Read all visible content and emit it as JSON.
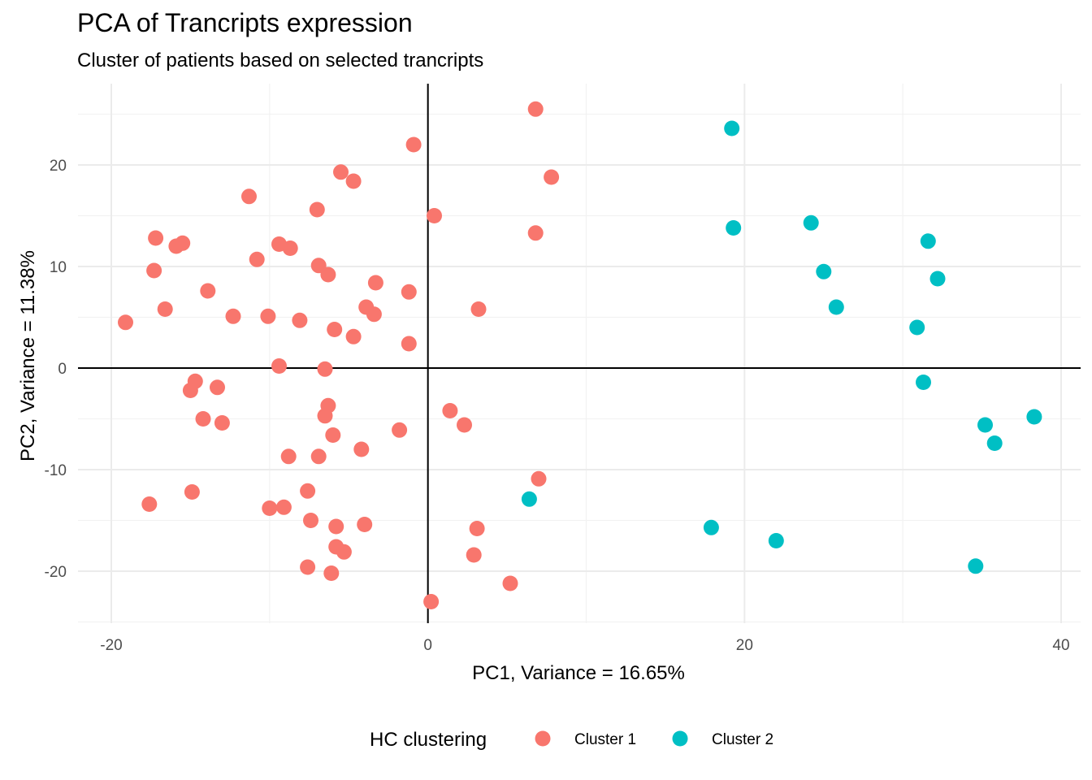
{
  "chart_data": {
    "type": "scatter",
    "title": "PCA of Trancripts expression",
    "subtitle": "Cluster of patients based on selected trancripts",
    "xlabel": "PC1, Variance = 16.65%",
    "ylabel": "PC2, Variance = 11.38%",
    "xlim": [
      -22,
      41
    ],
    "ylim": [
      -25,
      27
    ],
    "x_ticks": [
      -20,
      0,
      20,
      40
    ],
    "y_ticks": [
      -20,
      -10,
      0,
      10,
      20
    ],
    "x_tick_labels": [
      "-20",
      "0",
      "20",
      "40"
    ],
    "y_tick_labels": [
      "-20",
      "-10",
      "0",
      "10",
      "20"
    ],
    "grid": true,
    "zero_lines": true,
    "legend": {
      "title": "HC clustering",
      "position": "bottom"
    },
    "series": [
      {
        "name": "Cluster 1",
        "color": "#F8766D",
        "points": [
          [
            6.8,
            25.5
          ],
          [
            -0.9,
            22.0
          ],
          [
            7.8,
            18.8
          ],
          [
            -5.5,
            19.3
          ],
          [
            -4.7,
            18.4
          ],
          [
            -11.3,
            16.9
          ],
          [
            -7.0,
            15.6
          ],
          [
            0.4,
            15.0
          ],
          [
            6.8,
            13.3
          ],
          [
            -17.2,
            12.8
          ],
          [
            -15.9,
            12.0
          ],
          [
            -15.5,
            12.3
          ],
          [
            -9.4,
            12.2
          ],
          [
            -8.7,
            11.8
          ],
          [
            -10.8,
            10.7
          ],
          [
            -17.3,
            9.6
          ],
          [
            -6.9,
            10.1
          ],
          [
            -6.3,
            9.2
          ],
          [
            -3.3,
            8.4
          ],
          [
            -13.9,
            7.6
          ],
          [
            -1.2,
            7.5
          ],
          [
            -16.6,
            5.8
          ],
          [
            3.2,
            5.8
          ],
          [
            -3.9,
            6.0
          ],
          [
            -3.4,
            5.3
          ],
          [
            -12.3,
            5.1
          ],
          [
            -10.1,
            5.1
          ],
          [
            -8.1,
            4.7
          ],
          [
            -19.1,
            4.5
          ],
          [
            -5.9,
            3.8
          ],
          [
            -4.7,
            3.1
          ],
          [
            -1.2,
            2.4
          ],
          [
            -9.4,
            0.2
          ],
          [
            -6.5,
            -0.1
          ],
          [
            -14.7,
            -1.3
          ],
          [
            -15.0,
            -2.2
          ],
          [
            -13.3,
            -1.9
          ],
          [
            -6.3,
            -3.7
          ],
          [
            -6.5,
            -4.7
          ],
          [
            1.4,
            -4.2
          ],
          [
            -14.2,
            -5.0
          ],
          [
            -13.0,
            -5.4
          ],
          [
            2.3,
            -5.6
          ],
          [
            -1.8,
            -6.1
          ],
          [
            -6.0,
            -6.6
          ],
          [
            -4.2,
            -8.0
          ],
          [
            -8.8,
            -8.7
          ],
          [
            -6.9,
            -8.7
          ],
          [
            7.0,
            -10.9
          ],
          [
            -17.6,
            -13.4
          ],
          [
            -14.9,
            -12.2
          ],
          [
            -7.6,
            -12.1
          ],
          [
            -10.0,
            -13.8
          ],
          [
            -9.1,
            -13.7
          ],
          [
            -7.4,
            -15.0
          ],
          [
            -5.8,
            -15.6
          ],
          [
            -4.0,
            -15.4
          ],
          [
            3.1,
            -15.8
          ],
          [
            -5.8,
            -17.6
          ],
          [
            -5.3,
            -18.1
          ],
          [
            2.9,
            -18.4
          ],
          [
            -7.6,
            -19.6
          ],
          [
            -6.1,
            -20.2
          ],
          [
            5.2,
            -21.2
          ],
          [
            0.2,
            -23.0
          ]
        ]
      },
      {
        "name": "Cluster 2",
        "color": "#00BFC4",
        "points": [
          [
            19.2,
            23.6
          ],
          [
            19.3,
            13.8
          ],
          [
            24.2,
            14.3
          ],
          [
            31.6,
            12.5
          ],
          [
            25.0,
            9.5
          ],
          [
            32.2,
            8.8
          ],
          [
            25.8,
            6.0
          ],
          [
            30.9,
            4.0
          ],
          [
            31.3,
            -1.4
          ],
          [
            35.2,
            -5.6
          ],
          [
            38.3,
            -4.8
          ],
          [
            35.8,
            -7.4
          ],
          [
            6.4,
            -12.9
          ],
          [
            17.9,
            -15.7
          ],
          [
            22.0,
            -17.0
          ],
          [
            34.6,
            -19.5
          ]
        ]
      }
    ]
  }
}
